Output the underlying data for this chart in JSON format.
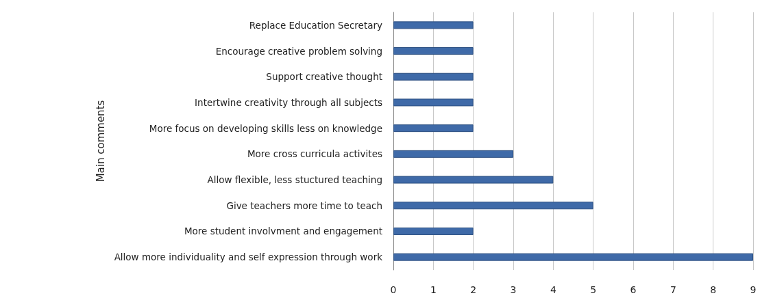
{
  "chart_data": {
    "type": "bar",
    "orientation": "horizontal",
    "ylabel": "Main comments",
    "categories": [
      "Replace Education Secretary",
      "Encourage creative problem solving",
      "Support creative thought",
      "Intertwine creativity through all subjects",
      "More focus on developing skills less on knowledge",
      "More cross curricula activites",
      "Allow flexible, less stuctured teaching",
      "Give teachers more time to teach",
      "More student involvment and engagement",
      "Allow more individuality and self expression through work"
    ],
    "values": [
      2,
      2,
      2,
      2,
      2,
      3,
      4,
      5,
      2,
      9
    ],
    "color": "#3f6aa8",
    "xlim": [
      0,
      9
    ],
    "xticks": [
      0,
      1,
      2,
      3,
      4,
      5,
      6,
      7,
      8,
      9
    ],
    "grid": "x"
  }
}
